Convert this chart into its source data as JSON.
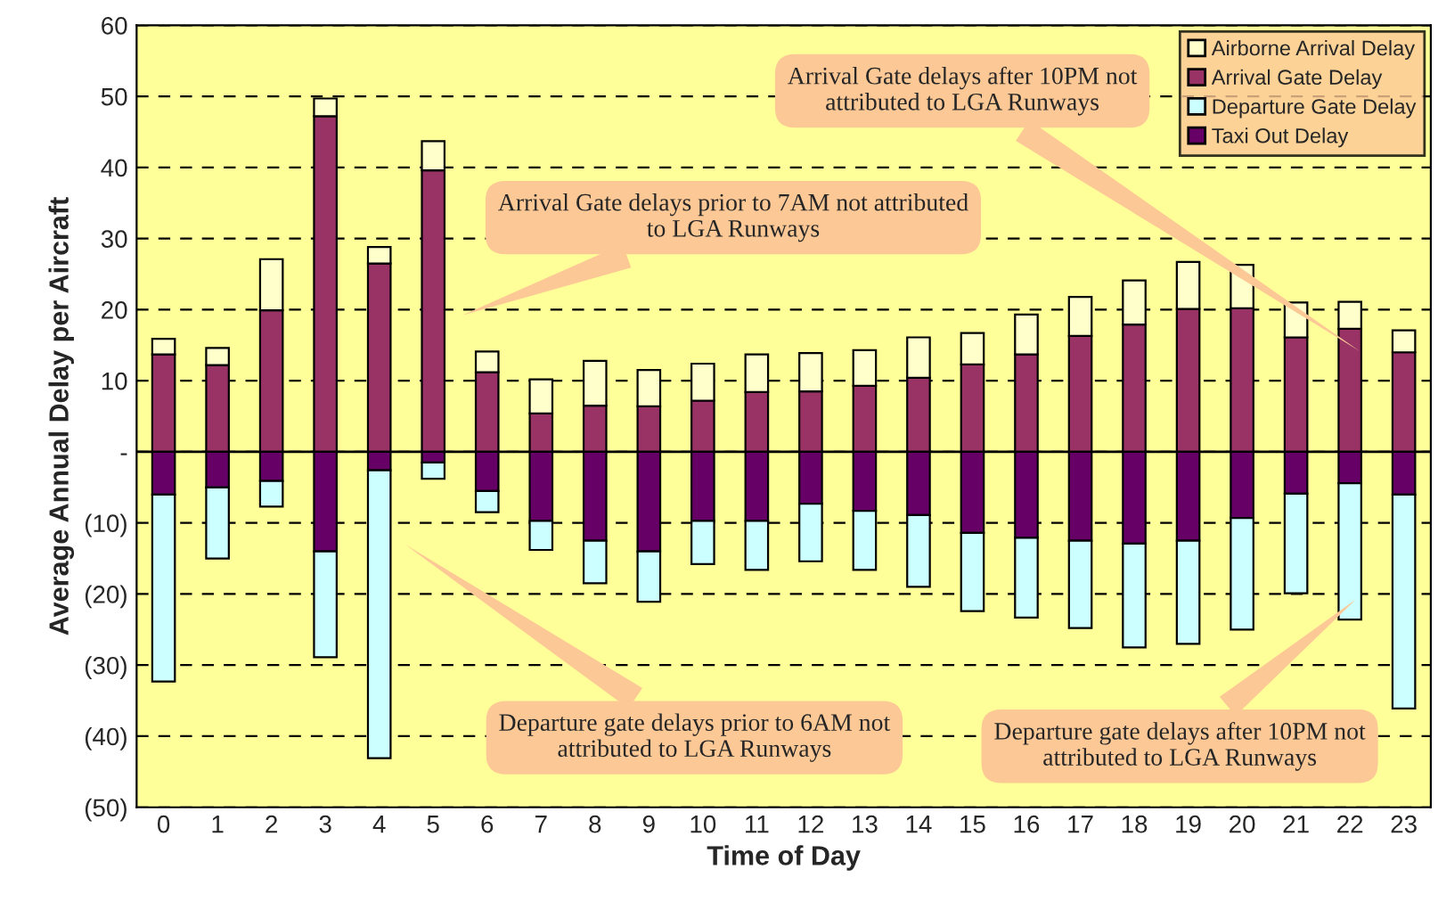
{
  "chart_data": {
    "type": "bar",
    "stacked": true,
    "xlabel": "Time of Day",
    "ylabel": "Average Annual Delay per Aircraft",
    "categories": [
      "0",
      "1",
      "2",
      "3",
      "4",
      "5",
      "6",
      "7",
      "8",
      "9",
      "10",
      "11",
      "12",
      "13",
      "14",
      "15",
      "16",
      "17",
      "18",
      "19",
      "20",
      "21",
      "22",
      "23"
    ],
    "series": [
      {
        "name": "Arrival Gate Delay",
        "color": "#993366",
        "values": [
          13.7,
          12.2,
          19.9,
          47.2,
          26.5,
          39.6,
          11.2,
          5.4,
          6.5,
          6.4,
          7.2,
          8.4,
          8.5,
          9.3,
          10.4,
          12.3,
          13.7,
          16.3,
          17.9,
          20.1,
          20.2,
          16.1,
          17.3,
          14.0
        ]
      },
      {
        "name": "Airborne Arrival Delay",
        "color": "#ffffcc",
        "values": [
          2.2,
          2.4,
          7.2,
          2.5,
          2.3,
          4.1,
          2.9,
          4.8,
          6.3,
          5.1,
          5.2,
          5.3,
          5.4,
          5.0,
          5.7,
          4.4,
          5.6,
          5.5,
          6.2,
          6.6,
          6.1,
          4.9,
          3.8,
          3.1
        ]
      },
      {
        "name": "Taxi Out Delay",
        "color": "#660066",
        "values": [
          -6.0,
          -5.0,
          -4.1,
          -14.0,
          -2.6,
          -1.5,
          -5.5,
          -9.7,
          -12.5,
          -14.0,
          -9.7,
          -9.7,
          -7.3,
          -8.3,
          -8.9,
          -11.4,
          -12.1,
          -12.5,
          -12.9,
          -12.5,
          -9.3,
          -5.9,
          -4.4,
          -6.0
        ]
      },
      {
        "name": "Departure Gate Delay",
        "color": "#ccffff",
        "values": [
          -26.3,
          -10.0,
          -3.6,
          -14.9,
          -40.5,
          -2.3,
          -3.0,
          -4.1,
          -6.0,
          -7.1,
          -6.1,
          -6.9,
          -8.1,
          -8.3,
          -10.1,
          -11.0,
          -11.2,
          -12.3,
          -14.6,
          -14.5,
          -15.7,
          -14.0,
          -19.2,
          -30.1
        ]
      }
    ],
    "ylim": [
      -50,
      60
    ],
    "yticks": [
      {
        "value": -50,
        "label": "(50)"
      },
      {
        "value": -40,
        "label": "(40)"
      },
      {
        "value": -30,
        "label": "(30)"
      },
      {
        "value": -20,
        "label": "(20)"
      },
      {
        "value": -10,
        "label": "(10)"
      },
      {
        "value": 0,
        "label": "-"
      },
      10,
      20,
      30,
      40,
      50,
      60
    ],
    "grid": "y",
    "legend": "top right",
    "annotations": [
      "Arrival Gate delays prior to 7AM not attributed to LGA Runways",
      "Arrival Gate delays after 10PM not attributed to LGA Runways",
      "Departure gate delays prior to 6AM not attributed to LGA Runways",
      "Departure gate delays after 10PM not attributed to LGA Runways"
    ]
  }
}
